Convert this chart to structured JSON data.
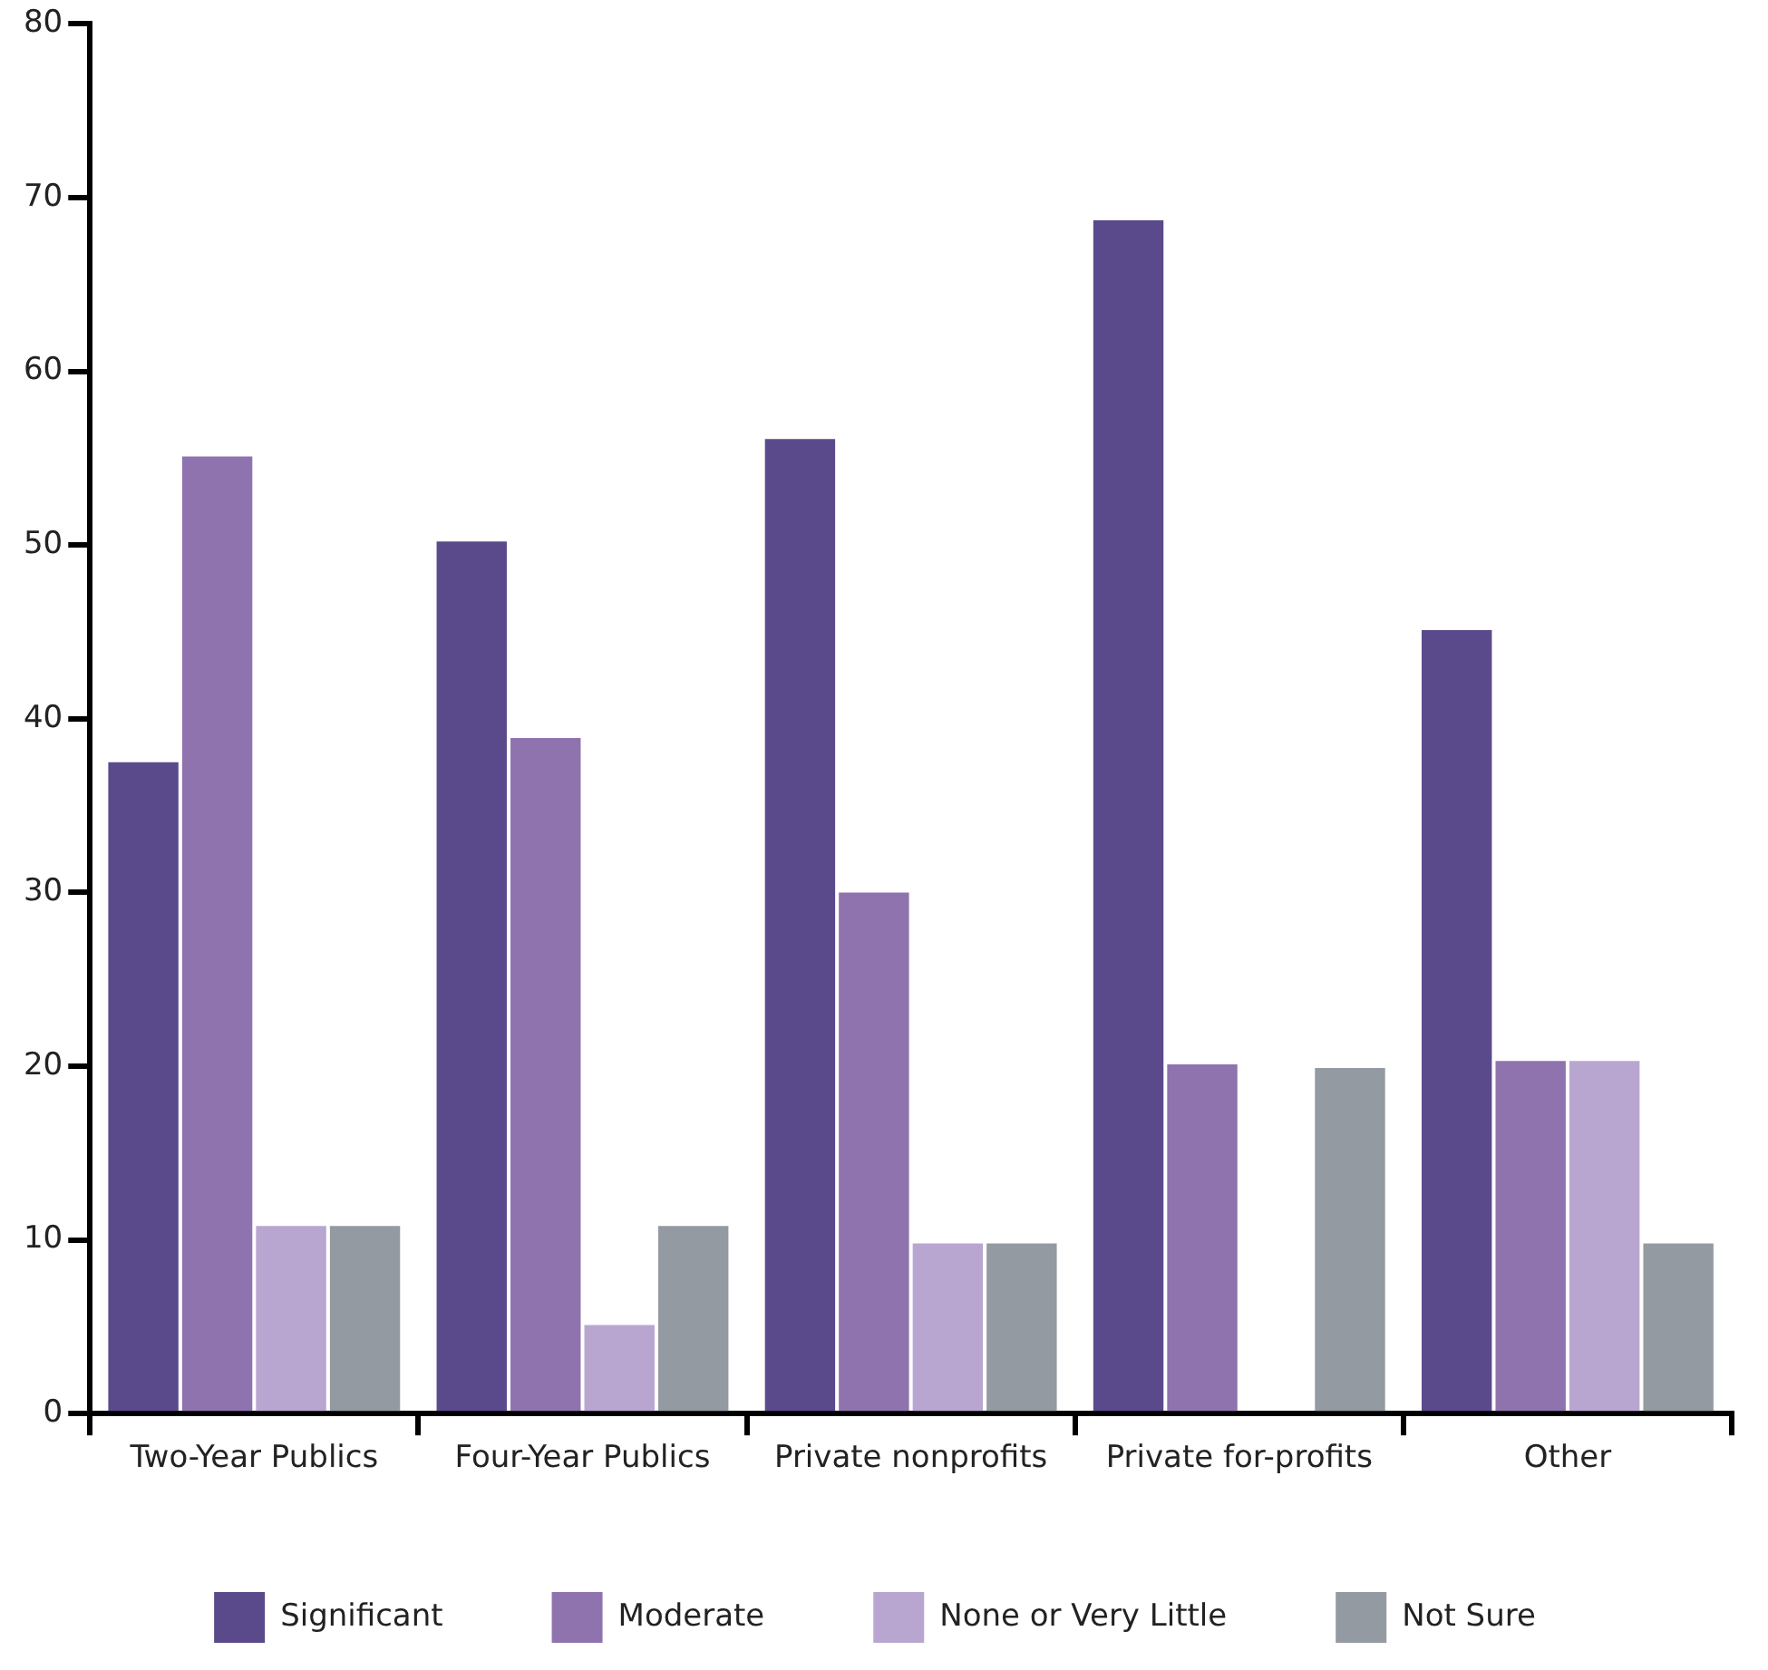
{
  "chart_data": {
    "type": "bar",
    "categories": [
      "Two-Year Publics",
      "Four-Year Publics",
      "Private nonprofits",
      "Private for-profits",
      "Other"
    ],
    "series": [
      {
        "name": "Significant",
        "color": "#5b4a8b",
        "values": [
          37.5,
          50.2,
          56.1,
          68.7,
          45.1
        ]
      },
      {
        "name": "Moderate",
        "color": "#8f73ae",
        "values": [
          55.1,
          38.9,
          30,
          20.1,
          20.3
        ]
      },
      {
        "name": "None or Very Little",
        "color": "#b8a6d1",
        "values": [
          10.8,
          5.1,
          9.8,
          0,
          20.3
        ]
      },
      {
        "name": "Not Sure",
        "color": "#939aa1",
        "values": [
          10.8,
          10.8,
          9.8,
          19.9,
          9.8
        ]
      }
    ],
    "ylim": [
      0,
      80
    ],
    "yticks": [
      0,
      10,
      20,
      30,
      40,
      50,
      60,
      70,
      80
    ],
    "grid": false,
    "legend": "bottom"
  }
}
